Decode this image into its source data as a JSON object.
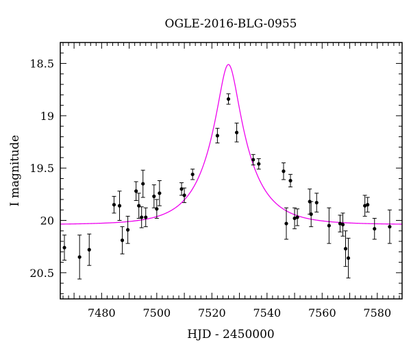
{
  "chart_data": {
    "type": "scatter",
    "title": "OGLE-2016-BLG-0955",
    "xlabel": "HJD - 2450000",
    "ylabel": "I magnitude",
    "xlim": [
      7465,
      7589
    ],
    "ylim": [
      20.75,
      18.3
    ],
    "y_inverted": true,
    "x_ticks": [
      7480,
      7500,
      7520,
      7540,
      7560,
      7580
    ],
    "x_tick_labels": [
      "7480",
      "7500",
      "7520",
      "7540",
      "7560",
      "7580"
    ],
    "y_ticks": [
      18.5,
      19,
      19.5,
      20,
      20.5
    ],
    "y_tick_labels": [
      "18.5",
      "19",
      "19.5",
      "20",
      "20.5"
    ],
    "grid": false,
    "legend": "none",
    "colors": {
      "model": "#ee00ee",
      "points": "#000000",
      "axes": "#000000"
    },
    "series": [
      {
        "kind": "points_with_errorbars",
        "points": [
          {
            "x": 7466.5,
            "y": 20.26,
            "err": 0.12
          },
          {
            "x": 7472.0,
            "y": 20.35,
            "err": 0.21
          },
          {
            "x": 7475.5,
            "y": 20.28,
            "err": 0.15
          },
          {
            "x": 7484.5,
            "y": 19.85,
            "err": 0.08
          },
          {
            "x": 7486.5,
            "y": 19.86,
            "err": 0.14
          },
          {
            "x": 7487.5,
            "y": 20.19,
            "err": 0.13
          },
          {
            "x": 7489.5,
            "y": 20.09,
            "err": 0.13
          },
          {
            "x": 7492.5,
            "y": 19.72,
            "err": 0.09
          },
          {
            "x": 7493.5,
            "y": 19.86,
            "err": 0.12
          },
          {
            "x": 7494.5,
            "y": 19.97,
            "err": 0.1
          },
          {
            "x": 7495.0,
            "y": 19.65,
            "err": 0.13
          },
          {
            "x": 7496.0,
            "y": 19.97,
            "err": 0.09
          },
          {
            "x": 7499.0,
            "y": 19.77,
            "err": 0.11
          },
          {
            "x": 7500.0,
            "y": 19.89,
            "err": 0.09
          },
          {
            "x": 7501.0,
            "y": 19.74,
            "err": 0.12
          },
          {
            "x": 7509.0,
            "y": 19.7,
            "err": 0.06
          },
          {
            "x": 7510.0,
            "y": 19.76,
            "err": 0.07
          },
          {
            "x": 7513.0,
            "y": 19.56,
            "err": 0.05
          },
          {
            "x": 7522.0,
            "y": 19.19,
            "err": 0.07
          },
          {
            "x": 7526.0,
            "y": 18.84,
            "err": 0.05
          },
          {
            "x": 7529.0,
            "y": 19.16,
            "err": 0.09
          },
          {
            "x": 7535.0,
            "y": 19.42,
            "err": 0.05
          },
          {
            "x": 7537.0,
            "y": 19.46,
            "err": 0.05
          },
          {
            "x": 7546.0,
            "y": 19.53,
            "err": 0.08
          },
          {
            "x": 7547.0,
            "y": 20.03,
            "err": 0.15
          },
          {
            "x": 7548.5,
            "y": 19.62,
            "err": 0.06
          },
          {
            "x": 7550.0,
            "y": 19.98,
            "err": 0.1
          },
          {
            "x": 7551.0,
            "y": 19.97,
            "err": 0.08
          },
          {
            "x": 7555.5,
            "y": 19.82,
            "err": 0.12
          },
          {
            "x": 7556.0,
            "y": 19.94,
            "err": 0.12
          },
          {
            "x": 7558.0,
            "y": 19.83,
            "err": 0.09
          },
          {
            "x": 7562.5,
            "y": 20.05,
            "err": 0.17
          },
          {
            "x": 7566.5,
            "y": 20.03,
            "err": 0.08
          },
          {
            "x": 7567.5,
            "y": 20.04,
            "err": 0.11
          },
          {
            "x": 7568.5,
            "y": 20.27,
            "err": 0.17
          },
          {
            "x": 7569.5,
            "y": 20.36,
            "err": 0.19
          },
          {
            "x": 7575.5,
            "y": 19.86,
            "err": 0.1
          },
          {
            "x": 7576.5,
            "y": 19.85,
            "err": 0.07
          },
          {
            "x": 7579.0,
            "y": 20.08,
            "err": 0.1
          },
          {
            "x": 7584.5,
            "y": 20.06,
            "err": 0.16
          }
        ]
      },
      {
        "kind": "model_curve",
        "model": {
          "t0": 7526.0,
          "tE": 14.0,
          "u0": 0.25,
          "I_base": 20.04
        }
      }
    ]
  }
}
